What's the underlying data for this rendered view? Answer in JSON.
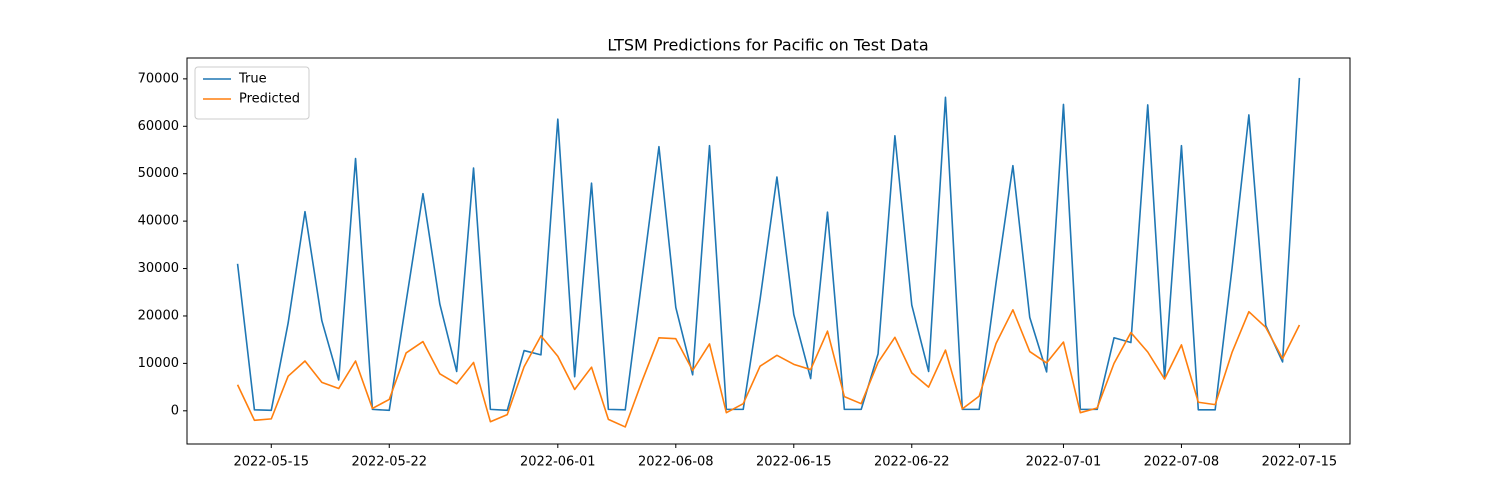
{
  "chart_data": {
    "type": "line",
    "title": "LTSM Predictions for Pacific on Test Data",
    "x": [
      "2022-05-13",
      "2022-05-14",
      "2022-05-15",
      "2022-05-16",
      "2022-05-17",
      "2022-05-18",
      "2022-05-19",
      "2022-05-20",
      "2022-05-21",
      "2022-05-22",
      "2022-05-23",
      "2022-05-24",
      "2022-05-25",
      "2022-05-26",
      "2022-05-27",
      "2022-05-28",
      "2022-05-29",
      "2022-05-30",
      "2022-05-31",
      "2022-06-01",
      "2022-06-02",
      "2022-06-03",
      "2022-06-04",
      "2022-06-05",
      "2022-06-06",
      "2022-06-07",
      "2022-06-08",
      "2022-06-09",
      "2022-06-10",
      "2022-06-11",
      "2022-06-12",
      "2022-06-13",
      "2022-06-14",
      "2022-06-15",
      "2022-06-16",
      "2022-06-17",
      "2022-06-18",
      "2022-06-19",
      "2022-06-20",
      "2022-06-21",
      "2022-06-22",
      "2022-06-23",
      "2022-06-24",
      "2022-06-25",
      "2022-06-26",
      "2022-06-27",
      "2022-06-28",
      "2022-06-29",
      "2022-06-30",
      "2022-07-01",
      "2022-07-02",
      "2022-07-03",
      "2022-07-04",
      "2022-07-05",
      "2022-07-06",
      "2022-07-07",
      "2022-07-08",
      "2022-07-09",
      "2022-07-10",
      "2022-07-11",
      "2022-07-12",
      "2022-07-13",
      "2022-07-14",
      "2022-07-15"
    ],
    "series": [
      {
        "name": "True",
        "color": "#1f77b4",
        "values": [
          31000,
          200,
          100,
          18500,
          42000,
          19000,
          6500,
          53200,
          300,
          100,
          23000,
          45800,
          22500,
          8300,
          51200,
          300,
          100,
          12700,
          11800,
          61500,
          7200,
          48000,
          300,
          200,
          28000,
          55700,
          21800,
          7600,
          55900,
          300,
          300,
          23500,
          49300,
          20300,
          6800,
          41900,
          300,
          300,
          12000,
          58000,
          22300,
          8300,
          66100,
          300,
          300,
          27000,
          51700,
          19700,
          8200,
          64600,
          300,
          300,
          15400,
          14400,
          64500,
          6800,
          55900,
          200,
          200,
          30000,
          62400,
          18000,
          10300,
          70200
        ]
      },
      {
        "name": "Predicted",
        "color": "#ff7f0e",
        "values": [
          5500,
          -2000,
          -1700,
          7300,
          10500,
          6000,
          4700,
          10500,
          500,
          2400,
          12200,
          14600,
          7800,
          5700,
          10200,
          -2300,
          -800,
          9300,
          15800,
          11500,
          4500,
          9200,
          -1800,
          -3400,
          6300,
          15400,
          15200,
          8500,
          14100,
          -400,
          1500,
          9400,
          11700,
          9800,
          8700,
          16800,
          3000,
          1500,
          10200,
          15500,
          8000,
          5000,
          12800,
          400,
          3100,
          14200,
          21300,
          12500,
          10100,
          14500,
          -400,
          600,
          10000,
          16500,
          12400,
          6700,
          13900,
          1800,
          1300,
          12300,
          20900,
          17600,
          11000,
          18100
        ]
      }
    ],
    "xlim": [
      "2022-05-10",
      "2022-07-18"
    ],
    "xticks": [
      "2022-05-15",
      "2022-05-22",
      "2022-06-01",
      "2022-06-08",
      "2022-06-15",
      "2022-06-22",
      "2022-07-01",
      "2022-07-08",
      "2022-07-15"
    ],
    "ylim": [
      -7000,
      74400
    ],
    "yticks": [
      0,
      10000,
      20000,
      30000,
      40000,
      50000,
      60000,
      70000
    ],
    "legend": "upper left",
    "grid": false
  }
}
